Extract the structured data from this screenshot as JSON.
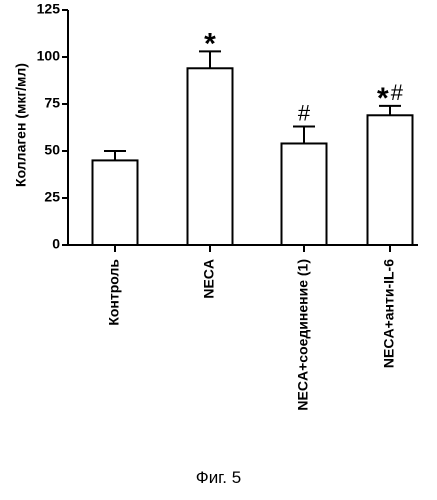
{
  "chart_data": {
    "type": "bar",
    "ylabel": "Коллаген (мкг/мл)",
    "xlabel": "",
    "title": "",
    "ylim": [
      0,
      125
    ],
    "yticks": [
      0,
      25,
      50,
      75,
      100,
      125
    ],
    "categories": [
      "Контроль",
      "NECA",
      "NECA+соединение (1)",
      "NECA+анти-IL-6"
    ],
    "values": [
      45,
      94,
      54,
      69
    ],
    "errors": [
      5,
      9,
      9,
      5
    ],
    "annotations": [
      "",
      "*",
      "#",
      "*#"
    ],
    "grid": false,
    "legend": "none"
  },
  "caption": "Фиг. 5"
}
